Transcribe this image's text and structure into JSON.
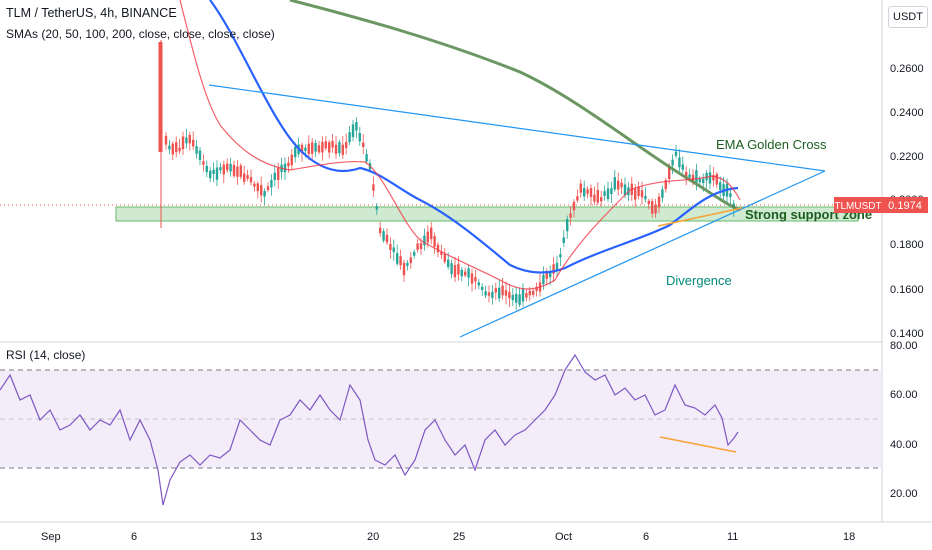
{
  "header": {
    "symbol_line": "TLM / TetherUS, 4h, BINANCE",
    "sma_legend": "SMAs (20, 50, 100, 200, close, close, close, close)",
    "rsi_legend": "RSI (14, close)",
    "currency_button": "USDT"
  },
  "price_axis": {
    "ticks": [
      "0.2600",
      "0.2400",
      "0.2200",
      "0.2000",
      "0.1800",
      "0.1600",
      "0.1400"
    ],
    "current_symbol": "TLMUSDT",
    "current_price": "0.1974"
  },
  "rsi_axis": {
    "ticks": [
      "80.00",
      "60.00",
      "40.00",
      "20.00"
    ]
  },
  "time_axis": {
    "labels": [
      "Sep",
      "6",
      "13",
      "20",
      "25",
      "Oct",
      "6",
      "11",
      "18"
    ]
  },
  "annotations": {
    "golden_cross": "EMA Golden Cross",
    "support_zone": "Strong support zone",
    "divergence": "Divergence"
  },
  "colors": {
    "up_candle": "#26a69a",
    "down_candle": "#ef5350",
    "sma_20": "#f23645",
    "sma_50": "#2962ff",
    "sma_200": "#5b8c51",
    "trendline": "#2196f3",
    "rsi_line": "#7e57c2",
    "rsi_band": "#ede7f6",
    "divergence_line": "#f7a337",
    "support_fill": "#c8e6c9",
    "price_badge": "#ef5350"
  },
  "chart_data": {
    "type": "candlestick",
    "interval": "4h",
    "price_range": [
      0.14,
      0.27
    ],
    "rsi_range": [
      10,
      80
    ],
    "rsi_levels": [
      30,
      50,
      70
    ],
    "support_zone": [
      0.1915,
      0.1975
    ],
    "last_price": 0.1974
  }
}
